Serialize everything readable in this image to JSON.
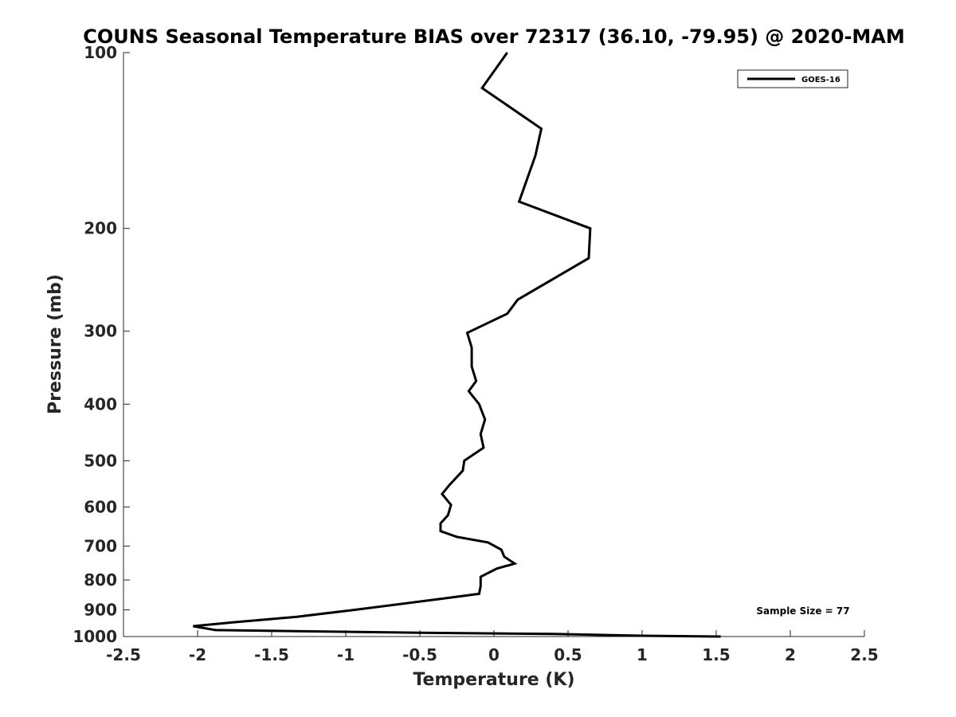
{
  "chart_data": {
    "type": "line",
    "title": "COUNS Seasonal Temperature BIAS over 72317 (36.10, -79.95) @ 2020-MAM",
    "xlabel": "Temperature (K)",
    "ylabel": "Pressure (mb)",
    "xlim": [
      -2.5,
      2.5
    ],
    "ylim": [
      1000,
      100
    ],
    "yscale": "log",
    "y_reversed": true,
    "grid": false,
    "legend_position": "top-right",
    "x_ticks": [
      "-2.5",
      "-2",
      "-1.5",
      "-1",
      "-0.5",
      "0",
      "0.5",
      "1",
      "1.5",
      "2",
      "2.5"
    ],
    "y_ticks": [
      "100",
      "200",
      "300",
      "400",
      "500",
      "600",
      "700",
      "800",
      "900",
      "1000"
    ],
    "series": [
      {
        "name": "GOES-16",
        "color": "#000000",
        "points": [
          [
            0.09,
            100
          ],
          [
            -0.08,
            115
          ],
          [
            0.32,
            135
          ],
          [
            0.28,
            150
          ],
          [
            0.17,
            180
          ],
          [
            0.65,
            200
          ],
          [
            0.64,
            225
          ],
          [
            0.16,
            265
          ],
          [
            0.09,
            280
          ],
          [
            -0.18,
            302
          ],
          [
            -0.15,
            320
          ],
          [
            -0.15,
            345
          ],
          [
            -0.12,
            365
          ],
          [
            -0.17,
            380
          ],
          [
            -0.1,
            400
          ],
          [
            -0.06,
            425
          ],
          [
            -0.09,
            450
          ],
          [
            -0.07,
            475
          ],
          [
            -0.2,
            500
          ],
          [
            -0.21,
            520
          ],
          [
            -0.3,
            550
          ],
          [
            -0.35,
            570
          ],
          [
            -0.29,
            595
          ],
          [
            -0.31,
            620
          ],
          [
            -0.36,
            640
          ],
          [
            -0.36,
            660
          ],
          [
            -0.25,
            675
          ],
          [
            -0.04,
            690
          ],
          [
            0.05,
            710
          ],
          [
            0.07,
            730
          ],
          [
            0.14,
            750
          ],
          [
            0.02,
            765
          ],
          [
            -0.09,
            790
          ],
          [
            -0.09,
            820
          ],
          [
            -0.1,
            845
          ],
          [
            -0.33,
            860
          ],
          [
            -0.94,
            900
          ],
          [
            -1.33,
            925
          ],
          [
            -1.75,
            945
          ],
          [
            -2.03,
            960
          ],
          [
            -1.88,
            975
          ],
          [
            -0.5,
            985
          ],
          [
            0.4,
            990
          ],
          [
            1.0,
            997
          ],
          [
            1.53,
            1000
          ]
        ]
      }
    ],
    "annotations": [
      {
        "text": "Sample Size = 77"
      }
    ]
  }
}
